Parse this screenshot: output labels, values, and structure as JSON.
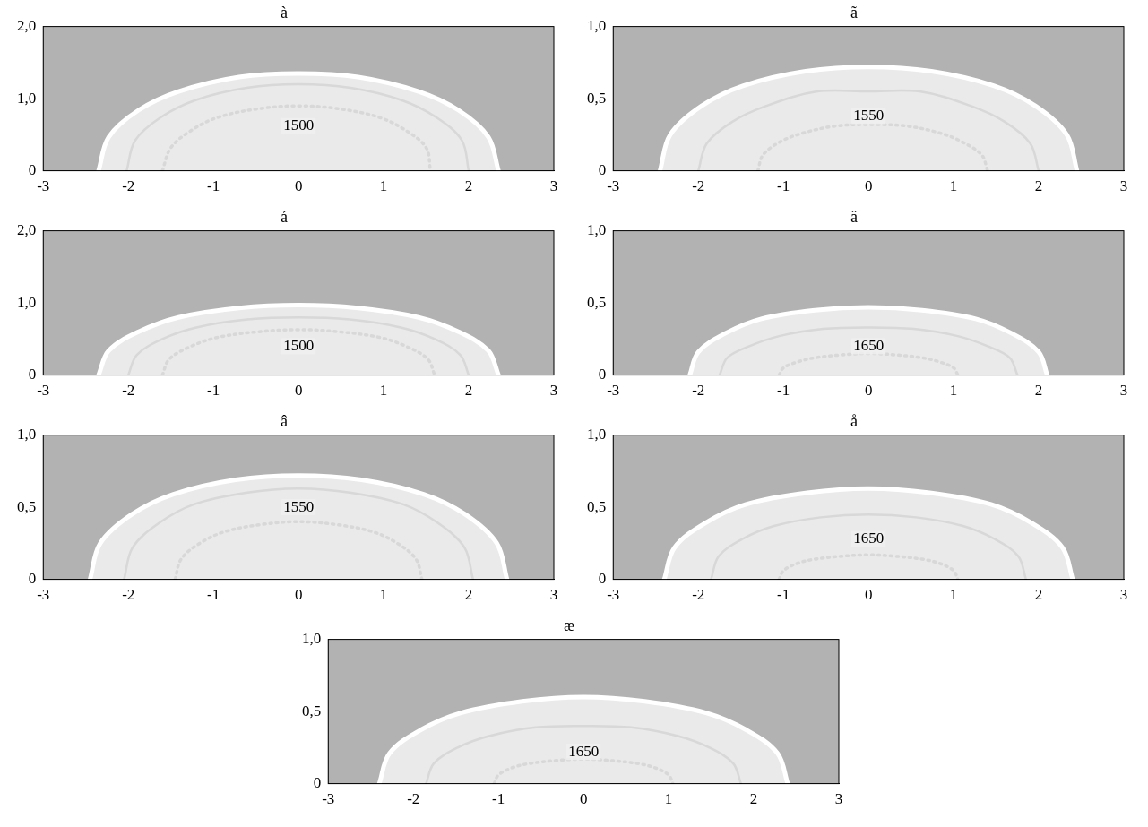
{
  "chart_data": [
    {
      "type": "line",
      "title": "à",
      "xlim": [
        -3,
        3
      ],
      "xticks": [
        -3,
        -2,
        -1,
        0,
        1,
        2,
        3
      ],
      "ylim": [
        0,
        2
      ],
      "yticks": [
        0,
        {
          "value": 1,
          "label": "1,0"
        },
        {
          "value": 2,
          "label": "2,0"
        }
      ],
      "series": [
        {
          "color": "#ffffff",
          "line_style": "solid",
          "x": [
            -2.35,
            -2.23,
            -1.88,
            -1.41,
            -0.7,
            0,
            0.7,
            1.41,
            1.88,
            2.23,
            2.35
          ],
          "values": [
            0,
            0.47,
            0.84,
            1.1,
            1.3,
            1.35,
            1.3,
            1.1,
            0.84,
            0.47,
            0
          ]
        },
        {
          "color": "#000000",
          "line_style": "solid",
          "x": [
            -2.02,
            -1.92,
            -1.62,
            -1.21,
            -0.61,
            0,
            0.61,
            1.21,
            1.62,
            1.92,
            2.0
          ],
          "values": [
            0,
            0.42,
            0.74,
            0.98,
            1.15,
            1.2,
            1.15,
            0.98,
            0.74,
            0.42,
            0
          ]
        },
        {
          "color": "#000000",
          "line_style": "dotted",
          "x": [
            -1.6,
            -1.5,
            -1.26,
            -0.95,
            -0.47,
            0,
            0.47,
            0.95,
            1.26,
            1.5,
            1.55
          ],
          "values": [
            0,
            0.32,
            0.56,
            0.74,
            0.86,
            0.9,
            0.86,
            0.74,
            0.56,
            0.32,
            0
          ]
        }
      ],
      "annotations": [
        {
          "text": "1500",
          "x": 0,
          "y": 0.62
        }
      ]
    },
    {
      "type": "line",
      "title": "ã",
      "xlim": [
        -3,
        3
      ],
      "xticks": [
        -3,
        -2,
        -1,
        0,
        1,
        2,
        3
      ],
      "ylim": [
        0,
        1
      ],
      "yticks": [
        0,
        {
          "value": 0.5,
          "label": "0,5"
        },
        {
          "value": 1,
          "label": "1,0"
        }
      ],
      "series": [
        {
          "color": "#ffffff",
          "line_style": "solid",
          "x": [
            -2.45,
            -2.33,
            -1.96,
            -1.47,
            -0.74,
            0,
            0.74,
            1.47,
            1.96,
            2.33,
            2.45
          ],
          "values": [
            0,
            0.25,
            0.45,
            0.59,
            0.69,
            0.72,
            0.69,
            0.59,
            0.45,
            0.25,
            0
          ]
        },
        {
          "color": "#000000",
          "line_style": "solid",
          "x": [
            -2.0,
            -1.9,
            -1.6,
            -1.2,
            -0.6,
            0,
            0.6,
            1.2,
            1.6,
            1.9,
            2.0
          ],
          "values": [
            0,
            0.19,
            0.34,
            0.45,
            0.55,
            0.55,
            0.55,
            0.45,
            0.34,
            0.19,
            0
          ]
        },
        {
          "color": "#000000",
          "line_style": "dotted",
          "x": [
            -1.3,
            -1.24,
            -1.04,
            -0.78,
            -0.39,
            0.05,
            0.45,
            0.85,
            1.1,
            1.33,
            1.4
          ],
          "values": [
            0,
            0.11,
            0.2,
            0.26,
            0.31,
            0.32,
            0.31,
            0.26,
            0.2,
            0.11,
            0
          ]
        }
      ],
      "annotations": [
        {
          "text": "1550",
          "x": 0,
          "y": 0.38
        }
      ]
    },
    {
      "type": "line",
      "title": "á",
      "xlim": [
        -3,
        3
      ],
      "xticks": [
        -3,
        -2,
        -1,
        0,
        1,
        2,
        3
      ],
      "ylim": [
        0,
        2
      ],
      "yticks": [
        0,
        {
          "value": 1,
          "label": "1,0"
        },
        {
          "value": 2,
          "label": "2,0"
        }
      ],
      "series": [
        {
          "color": "#ffffff",
          "line_style": "solid",
          "x": [
            -2.35,
            -2.23,
            -1.88,
            -1.41,
            -0.7,
            0,
            0.7,
            1.41,
            1.88,
            2.23,
            2.35
          ],
          "values": [
            0,
            0.34,
            0.6,
            0.8,
            0.93,
            0.97,
            0.93,
            0.8,
            0.6,
            0.34,
            0
          ]
        },
        {
          "color": "#000000",
          "line_style": "solid",
          "x": [
            -2.0,
            -1.9,
            -1.6,
            -1.2,
            -0.6,
            0,
            0.6,
            1.2,
            1.6,
            1.9,
            2.0
          ],
          "values": [
            0,
            0.28,
            0.5,
            0.66,
            0.77,
            0.8,
            0.77,
            0.66,
            0.5,
            0.28,
            0
          ]
        },
        {
          "color": "#000000",
          "line_style": "dotted",
          "x": [
            -1.6,
            -1.52,
            -1.28,
            -0.96,
            -0.48,
            0,
            0.48,
            0.96,
            1.28,
            1.52,
            1.6
          ],
          "values": [
            0,
            0.22,
            0.39,
            0.52,
            0.6,
            0.63,
            0.6,
            0.52,
            0.39,
            0.22,
            0
          ]
        }
      ],
      "annotations": [
        {
          "text": "1500",
          "x": 0,
          "y": 0.4
        }
      ]
    },
    {
      "type": "line",
      "title": "ä",
      "xlim": [
        -3,
        3
      ],
      "xticks": [
        -3,
        -2,
        -1,
        0,
        1,
        2,
        3
      ],
      "ylim": [
        0,
        1
      ],
      "yticks": [
        0,
        {
          "value": 0.5,
          "label": "0,5"
        },
        {
          "value": 1,
          "label": "1,0"
        }
      ],
      "series": [
        {
          "color": "#ffffff",
          "line_style": "solid",
          "x": [
            -2.1,
            -2.0,
            -1.68,
            -1.26,
            -0.63,
            0,
            0.63,
            1.26,
            1.68,
            2.0,
            2.1
          ],
          "values": [
            0,
            0.16,
            0.29,
            0.39,
            0.45,
            0.47,
            0.45,
            0.39,
            0.29,
            0.16,
            0
          ]
        },
        {
          "color": "#000000",
          "line_style": "solid",
          "x": [
            -1.75,
            -1.66,
            -1.4,
            -1.05,
            -0.53,
            0,
            0.53,
            1.05,
            1.4,
            1.66,
            1.75
          ],
          "values": [
            0,
            0.12,
            0.2,
            0.27,
            0.32,
            0.33,
            0.32,
            0.27,
            0.2,
            0.12,
            0
          ]
        },
        {
          "color": "#000000",
          "line_style": "dotted",
          "x": [
            -1.05,
            -1.0,
            -0.84,
            -0.63,
            -0.32,
            0,
            0.32,
            0.63,
            0.84,
            1.0,
            1.05
          ],
          "values": [
            0,
            0.05,
            0.09,
            0.12,
            0.14,
            0.15,
            0.14,
            0.12,
            0.09,
            0.05,
            0
          ]
        }
      ],
      "annotations": [
        {
          "text": "1650",
          "x": 0,
          "y": 0.2
        }
      ]
    },
    {
      "type": "line",
      "title": "â",
      "xlim": [
        -3,
        3
      ],
      "xticks": [
        -3,
        -2,
        -1,
        0,
        1,
        2,
        3
      ],
      "ylim": [
        0,
        1
      ],
      "yticks": [
        0,
        {
          "value": 0.5,
          "label": "0,5"
        },
        {
          "value": 1,
          "label": "1,0"
        }
      ],
      "series": [
        {
          "color": "#ffffff",
          "line_style": "solid",
          "x": [
            -2.45,
            -2.33,
            -1.96,
            -1.47,
            -0.74,
            0,
            0.74,
            1.47,
            1.96,
            2.33,
            2.45
          ],
          "values": [
            0,
            0.25,
            0.45,
            0.59,
            0.69,
            0.72,
            0.69,
            0.59,
            0.45,
            0.25,
            0
          ]
        },
        {
          "color": "#000000",
          "line_style": "solid",
          "x": [
            -2.05,
            -1.95,
            -1.64,
            -1.23,
            -0.62,
            0,
            0.62,
            1.23,
            1.64,
            1.95,
            2.05
          ],
          "values": [
            0,
            0.22,
            0.39,
            0.52,
            0.6,
            0.63,
            0.6,
            0.52,
            0.39,
            0.22,
            0
          ]
        },
        {
          "color": "#000000",
          "line_style": "dotted",
          "x": [
            -1.45,
            -1.38,
            -1.16,
            -0.87,
            -0.44,
            0,
            0.44,
            0.87,
            1.16,
            1.38,
            1.45
          ],
          "values": [
            0,
            0.14,
            0.25,
            0.33,
            0.38,
            0.4,
            0.38,
            0.33,
            0.25,
            0.14,
            0
          ]
        }
      ],
      "annotations": [
        {
          "text": "1550",
          "x": 0,
          "y": 0.5
        }
      ]
    },
    {
      "type": "line",
      "title": "å",
      "xlim": [
        -3,
        3
      ],
      "xticks": [
        -3,
        -2,
        -1,
        0,
        1,
        2,
        3
      ],
      "ylim": [
        0,
        1
      ],
      "yticks": [
        0,
        {
          "value": 0.5,
          "label": "0,5"
        },
        {
          "value": 1,
          "label": "1,0"
        }
      ],
      "series": [
        {
          "color": "#ffffff",
          "line_style": "solid",
          "x": [
            -2.4,
            -2.28,
            -1.92,
            -1.44,
            -0.72,
            0,
            0.72,
            1.44,
            1.92,
            2.28,
            2.4
          ],
          "values": [
            0,
            0.22,
            0.39,
            0.52,
            0.6,
            0.63,
            0.6,
            0.52,
            0.39,
            0.22,
            0
          ]
        },
        {
          "color": "#000000",
          "line_style": "solid",
          "x": [
            -1.85,
            -1.76,
            -1.48,
            -1.11,
            -0.56,
            0,
            0.56,
            1.11,
            1.48,
            1.76,
            1.85
          ],
          "values": [
            0,
            0.16,
            0.28,
            0.37,
            0.43,
            0.45,
            0.43,
            0.37,
            0.28,
            0.16,
            0
          ]
        },
        {
          "color": "#000000",
          "line_style": "dotted",
          "x": [
            -1.05,
            -1.0,
            -0.84,
            -0.63,
            -0.32,
            0,
            0.32,
            0.63,
            0.84,
            1.0,
            1.05
          ],
          "values": [
            0,
            0.06,
            0.11,
            0.14,
            0.16,
            0.17,
            0.16,
            0.14,
            0.11,
            0.06,
            0
          ]
        }
      ],
      "annotations": [
        {
          "text": "1650",
          "x": 0,
          "y": 0.28
        }
      ]
    },
    {
      "type": "line",
      "title": "æ",
      "xlim": [
        -3,
        3
      ],
      "xticks": [
        -3,
        -2,
        -1,
        0,
        1,
        2,
        3
      ],
      "ylim": [
        0,
        1
      ],
      "yticks": [
        0,
        {
          "value": 0.5,
          "label": "0,5"
        },
        {
          "value": 1,
          "label": "1,0"
        }
      ],
      "series": [
        {
          "color": "#ffffff",
          "line_style": "solid",
          "x": [
            -2.4,
            -2.28,
            -1.92,
            -1.44,
            -0.72,
            0,
            0.72,
            1.44,
            1.92,
            2.28,
            2.4
          ],
          "values": [
            0,
            0.21,
            0.37,
            0.49,
            0.57,
            0.6,
            0.57,
            0.49,
            0.37,
            0.21,
            0
          ]
        },
        {
          "color": "#000000",
          "line_style": "solid",
          "x": [
            -1.85,
            -1.76,
            -1.48,
            -1.11,
            -0.56,
            0,
            0.56,
            1.11,
            1.48,
            1.76,
            1.85
          ],
          "values": [
            0,
            0.14,
            0.25,
            0.33,
            0.39,
            0.4,
            0.39,
            0.33,
            0.25,
            0.14,
            0
          ]
        },
        {
          "color": "#000000",
          "line_style": "dotted",
          "x": [
            -1.05,
            -1.0,
            -0.84,
            -0.63,
            -0.32,
            0,
            0.32,
            0.63,
            0.84,
            1.0,
            1.05
          ],
          "values": [
            0,
            0.06,
            0.11,
            0.14,
            0.16,
            0.17,
            0.16,
            0.14,
            0.11,
            0.06,
            0
          ]
        }
      ],
      "annotations": [
        {
          "text": "1650",
          "x": 0,
          "y": 0.22
        }
      ]
    }
  ]
}
